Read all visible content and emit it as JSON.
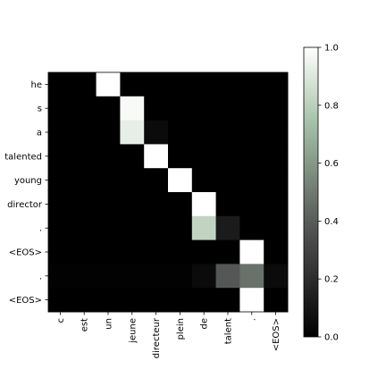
{
  "chart_data": {
    "type": "heatmap",
    "x_labels": [
      "c",
      "est",
      "un",
      "jeune",
      "directeur",
      "plein",
      "de",
      "talent",
      ".",
      "<EOS>"
    ],
    "y_labels": [
      "he",
      "s",
      "a",
      "talented",
      "young",
      "director",
      ".",
      "<EOS>",
      ".",
      "<EOS>"
    ],
    "values": [
      [
        0.0,
        0.0,
        1.0,
        0.0,
        0.0,
        0.0,
        0.0,
        0.0,
        0.0,
        0.0
      ],
      [
        0.0,
        0.0,
        0.0,
        0.98,
        0.0,
        0.0,
        0.0,
        0.0,
        0.0,
        0.0
      ],
      [
        0.0,
        0.0,
        0.0,
        0.93,
        0.05,
        0.0,
        0.0,
        0.0,
        0.0,
        0.0
      ],
      [
        0.0,
        0.0,
        0.0,
        0.0,
        1.0,
        0.0,
        0.0,
        0.0,
        0.0,
        0.0
      ],
      [
        0.0,
        0.0,
        0.0,
        0.0,
        0.0,
        1.0,
        0.0,
        0.0,
        0.0,
        0.0
      ],
      [
        0.0,
        0.0,
        0.0,
        0.0,
        0.0,
        0.0,
        1.0,
        0.0,
        0.0,
        0.0
      ],
      [
        0.0,
        0.0,
        0.0,
        0.0,
        0.0,
        0.0,
        0.82,
        0.12,
        0.0,
        0.0
      ],
      [
        0.0,
        0.0,
        0.0,
        0.0,
        0.0,
        0.0,
        0.0,
        0.0,
        1.0,
        0.0
      ],
      [
        0.01,
        0.01,
        0.01,
        0.01,
        0.01,
        0.01,
        0.05,
        0.38,
        0.47,
        0.05
      ],
      [
        0.0,
        0.0,
        0.0,
        0.0,
        0.0,
        0.0,
        0.0,
        0.0,
        1.0,
        0.0
      ]
    ],
    "colormap": "bone",
    "colorbar": {
      "range": [
        0.0,
        1.0
      ],
      "ticks": [
        "0.0",
        "0.2",
        "0.4",
        "0.6",
        "0.8",
        "1.0"
      ]
    }
  }
}
